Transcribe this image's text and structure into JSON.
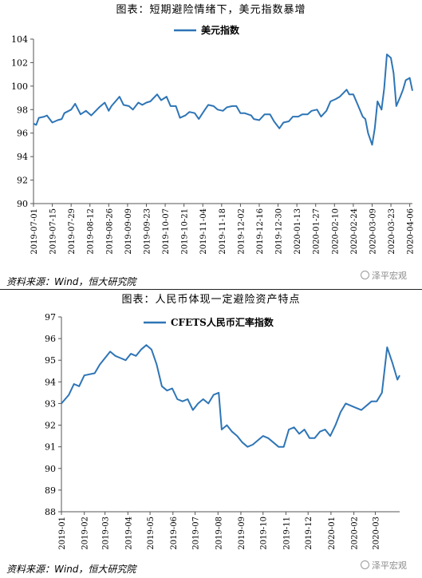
{
  "chart_data": [
    {
      "type": "line",
      "title": "图表：短期避险情绪下，美元指数暴增",
      "legend": "美元指数",
      "legend_position": "top-center",
      "series": [
        {
          "name": "美元指数",
          "color": "#2e75b6"
        }
      ],
      "ylim": [
        90,
        104
      ],
      "yticks": [
        90,
        92,
        94,
        96,
        98,
        100,
        102,
        104
      ],
      "grid": false,
      "x_start": "2019-07-01",
      "x_end": "2020-04-08",
      "x_tick_labels": [
        "2019-07-01",
        "2019-07-15",
        "2019-07-29",
        "2019-08-12",
        "2019-08-26",
        "2019-09-09",
        "2019-09-23",
        "2019-10-07",
        "2019-10-21",
        "2019-11-04",
        "2019-11-18",
        "2019-12-02",
        "2019-12-16",
        "2019-12-30",
        "2020-01-13",
        "2020-01-27",
        "2020-02-10",
        "2020-02-24",
        "2020-03-09",
        "2020-03-23",
        "2020-04-06"
      ],
      "points": [
        [
          "2019-07-01",
          96.8
        ],
        [
          "2019-07-03",
          96.7
        ],
        [
          "2019-07-05",
          97.3
        ],
        [
          "2019-07-09",
          97.4
        ],
        [
          "2019-07-11",
          97.5
        ],
        [
          "2019-07-15",
          96.9
        ],
        [
          "2019-07-19",
          97.1
        ],
        [
          "2019-07-22",
          97.2
        ],
        [
          "2019-07-24",
          97.7
        ],
        [
          "2019-07-29",
          98.0
        ],
        [
          "2019-08-01",
          98.5
        ],
        [
          "2019-08-05",
          97.6
        ],
        [
          "2019-08-09",
          97.9
        ],
        [
          "2019-08-13",
          97.5
        ],
        [
          "2019-08-19",
          98.2
        ],
        [
          "2019-08-23",
          98.6
        ],
        [
          "2019-08-26",
          97.9
        ],
        [
          "2019-08-28",
          98.3
        ],
        [
          "2019-09-03",
          99.1
        ],
        [
          "2019-09-06",
          98.4
        ],
        [
          "2019-09-10",
          98.3
        ],
        [
          "2019-09-13",
          98.0
        ],
        [
          "2019-09-17",
          98.6
        ],
        [
          "2019-09-20",
          98.4
        ],
        [
          "2019-09-23",
          98.6
        ],
        [
          "2019-09-26",
          98.7
        ],
        [
          "2019-10-01",
          99.3
        ],
        [
          "2019-10-04",
          98.8
        ],
        [
          "2019-10-08",
          99.1
        ],
        [
          "2019-10-11",
          98.3
        ],
        [
          "2019-10-15",
          98.3
        ],
        [
          "2019-10-18",
          97.3
        ],
        [
          "2019-10-22",
          97.5
        ],
        [
          "2019-10-25",
          97.8
        ],
        [
          "2019-10-29",
          97.7
        ],
        [
          "2019-11-01",
          97.2
        ],
        [
          "2019-11-05",
          97.9
        ],
        [
          "2019-11-08",
          98.4
        ],
        [
          "2019-11-12",
          98.3
        ],
        [
          "2019-11-15",
          98.0
        ],
        [
          "2019-11-19",
          97.9
        ],
        [
          "2019-11-22",
          98.2
        ],
        [
          "2019-11-26",
          98.3
        ],
        [
          "2019-11-29",
          98.3
        ],
        [
          "2019-12-02",
          97.7
        ],
        [
          "2019-12-05",
          97.7
        ],
        [
          "2019-12-10",
          97.5
        ],
        [
          "2019-12-12",
          97.2
        ],
        [
          "2019-12-16",
          97.1
        ],
        [
          "2019-12-20",
          97.6
        ],
        [
          "2019-12-24",
          97.6
        ],
        [
          "2019-12-27",
          97.0
        ],
        [
          "2019-12-31",
          96.4
        ],
        [
          "2020-01-03",
          96.9
        ],
        [
          "2020-01-07",
          97.0
        ],
        [
          "2020-01-10",
          97.4
        ],
        [
          "2020-01-14",
          97.4
        ],
        [
          "2020-01-17",
          97.6
        ],
        [
          "2020-01-21",
          97.6
        ],
        [
          "2020-01-24",
          97.9
        ],
        [
          "2020-01-28",
          98.0
        ],
        [
          "2020-01-31",
          97.4
        ],
        [
          "2020-02-04",
          97.9
        ],
        [
          "2020-02-07",
          98.7
        ],
        [
          "2020-02-11",
          98.9
        ],
        [
          "2020-02-14",
          99.1
        ],
        [
          "2020-02-19",
          99.7
        ],
        [
          "2020-02-21",
          99.3
        ],
        [
          "2020-02-24",
          99.3
        ],
        [
          "2020-02-27",
          98.5
        ],
        [
          "2020-03-02",
          97.4
        ],
        [
          "2020-03-04",
          97.2
        ],
        [
          "2020-03-06",
          96.0
        ],
        [
          "2020-03-09",
          95.0
        ],
        [
          "2020-03-11",
          96.4
        ],
        [
          "2020-03-13",
          98.7
        ],
        [
          "2020-03-16",
          98.0
        ],
        [
          "2020-03-18",
          99.8
        ],
        [
          "2020-03-20",
          102.7
        ],
        [
          "2020-03-23",
          102.4
        ],
        [
          "2020-03-25",
          101.1
        ],
        [
          "2020-03-27",
          98.3
        ],
        [
          "2020-03-30",
          99.1
        ],
        [
          "2020-04-01",
          99.7
        ],
        [
          "2020-04-03",
          100.5
        ],
        [
          "2020-04-06",
          100.7
        ],
        [
          "2020-04-08",
          99.6
        ]
      ]
    },
    {
      "type": "line",
      "title": "图表：人民币体现一定避险资产特点",
      "legend": "CFETS人民币汇率指数",
      "legend_position": "top-center",
      "series": [
        {
          "name": "CFETS人民币汇率指数",
          "color": "#2e75b6"
        }
      ],
      "ylim": [
        88,
        97
      ],
      "yticks": [
        88,
        89,
        90,
        91,
        92,
        93,
        94,
        95,
        96,
        97
      ],
      "grid": false,
      "x_start": "2019-01-01",
      "x_end": "2020-04-03",
      "x_tick_labels": [
        "2019-01",
        "2019-02",
        "2019-03",
        "2019-04",
        "2019-05",
        "2019-06",
        "2019-07",
        "2019-08",
        "2019-09",
        "2019-10",
        "2019-11",
        "2019-12",
        "2020-01",
        "2020-02",
        "2020-03"
      ],
      "points": [
        [
          "2019-01-01",
          93.0
        ],
        [
          "2019-01-11",
          93.4
        ],
        [
          "2019-01-18",
          93.9
        ],
        [
          "2019-01-25",
          93.8
        ],
        [
          "2019-02-01",
          94.3
        ],
        [
          "2019-02-15",
          94.4
        ],
        [
          "2019-02-22",
          94.8
        ],
        [
          "2019-03-01",
          95.1
        ],
        [
          "2019-03-08",
          95.4
        ],
        [
          "2019-03-15",
          95.2
        ],
        [
          "2019-03-22",
          95.1
        ],
        [
          "2019-03-29",
          95.0
        ],
        [
          "2019-04-05",
          95.3
        ],
        [
          "2019-04-12",
          95.2
        ],
        [
          "2019-04-19",
          95.5
        ],
        [
          "2019-04-26",
          95.7
        ],
        [
          "2019-05-03",
          95.5
        ],
        [
          "2019-05-10",
          94.8
        ],
        [
          "2019-05-17",
          93.8
        ],
        [
          "2019-05-24",
          93.6
        ],
        [
          "2019-05-31",
          93.7
        ],
        [
          "2019-06-07",
          93.2
        ],
        [
          "2019-06-14",
          93.1
        ],
        [
          "2019-06-21",
          93.2
        ],
        [
          "2019-06-28",
          92.7
        ],
        [
          "2019-07-05",
          93.0
        ],
        [
          "2019-07-12",
          93.2
        ],
        [
          "2019-07-19",
          93.0
        ],
        [
          "2019-07-26",
          93.4
        ],
        [
          "2019-08-02",
          93.5
        ],
        [
          "2019-08-06",
          91.8
        ],
        [
          "2019-08-13",
          92.0
        ],
        [
          "2019-08-20",
          91.7
        ],
        [
          "2019-08-27",
          91.5
        ],
        [
          "2019-09-03",
          91.2
        ],
        [
          "2019-09-10",
          91.0
        ],
        [
          "2019-09-17",
          91.1
        ],
        [
          "2019-09-24",
          91.3
        ],
        [
          "2019-10-01",
          91.5
        ],
        [
          "2019-10-08",
          91.4
        ],
        [
          "2019-10-15",
          91.2
        ],
        [
          "2019-10-22",
          91.0
        ],
        [
          "2019-10-29",
          91.0
        ],
        [
          "2019-11-05",
          91.8
        ],
        [
          "2019-11-12",
          91.9
        ],
        [
          "2019-11-19",
          91.6
        ],
        [
          "2019-11-26",
          91.8
        ],
        [
          "2019-12-03",
          91.4
        ],
        [
          "2019-12-10",
          91.4
        ],
        [
          "2019-12-17",
          91.7
        ],
        [
          "2019-12-24",
          91.8
        ],
        [
          "2019-12-31",
          91.5
        ],
        [
          "2020-01-07",
          92.0
        ],
        [
          "2020-01-14",
          92.6
        ],
        [
          "2020-01-21",
          93.0
        ],
        [
          "2020-01-28",
          92.9
        ],
        [
          "2020-02-04",
          92.8
        ],
        [
          "2020-02-11",
          92.7
        ],
        [
          "2020-02-18",
          92.9
        ],
        [
          "2020-02-25",
          93.1
        ],
        [
          "2020-03-03",
          93.1
        ],
        [
          "2020-03-10",
          93.5
        ],
        [
          "2020-03-17",
          95.6
        ],
        [
          "2020-03-24",
          94.9
        ],
        [
          "2020-03-31",
          94.1
        ],
        [
          "2020-04-03",
          94.3
        ]
      ]
    }
  ],
  "footer": {
    "source1": "资料来源：Wind，恒大研究院",
    "source2": "资料来源：Wind，恒大研究院",
    "watermark1": "泽平宏观",
    "watermark2": "泽平宏观"
  }
}
